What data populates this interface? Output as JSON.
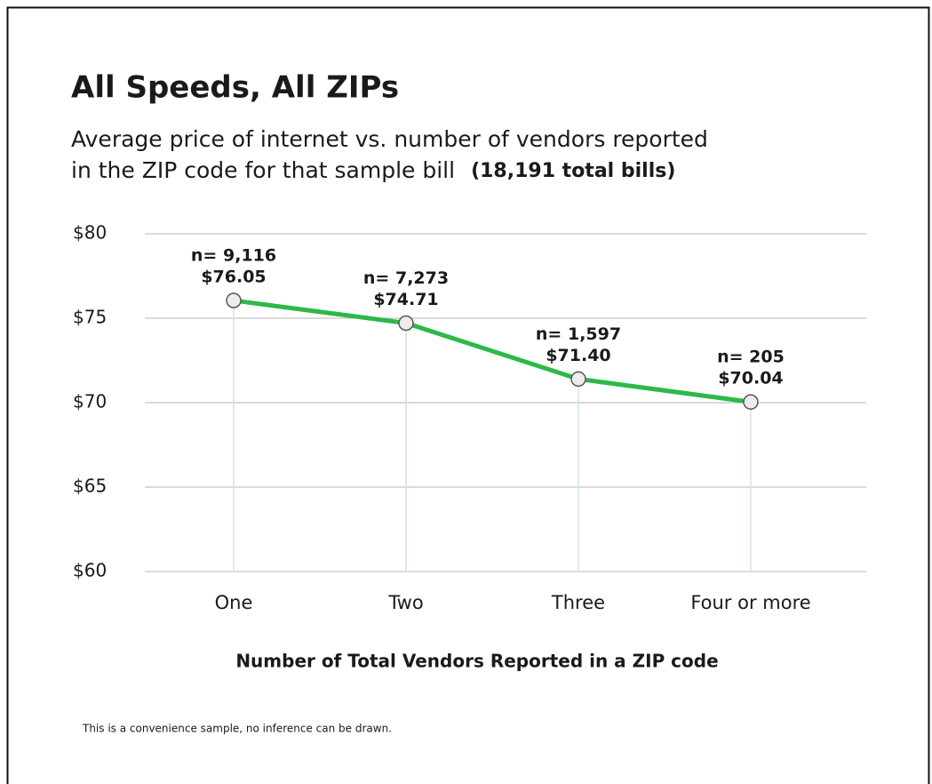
{
  "chart_data": {
    "type": "line",
    "title": "All Speeds, All ZIPs",
    "subtitle": [
      "Average price of internet vs. number of vendors reported",
      "in the ZIP code for that sample bill"
    ],
    "subtitle_note": "(18,191 total bills)",
    "categories": [
      "One",
      "Two",
      "Three",
      "Four or more"
    ],
    "values": [
      76.05,
      74.71,
      71.4,
      70.04
    ],
    "value_labels": [
      "$76.05",
      "$74.71",
      "$71.40",
      "$70.04"
    ],
    "annotations": [
      "n= 9,116",
      "n= 7,273",
      "n= 1,597",
      "n= 205"
    ],
    "color": "#2db84a",
    "ylim": [
      60,
      80
    ],
    "yticks": [
      {
        "value": 60,
        "label": "$60"
      },
      {
        "value": 65,
        "label": "$65"
      },
      {
        "value": 70,
        "label": "$70"
      },
      {
        "value": 75,
        "label": "$75"
      },
      {
        "value": 80,
        "label": "$80"
      }
    ],
    "grid": true,
    "xlabel": "Number of Total Vendors Reported in a ZIP code",
    "footnote": "This is a convenience sample, no inference can be drawn."
  }
}
